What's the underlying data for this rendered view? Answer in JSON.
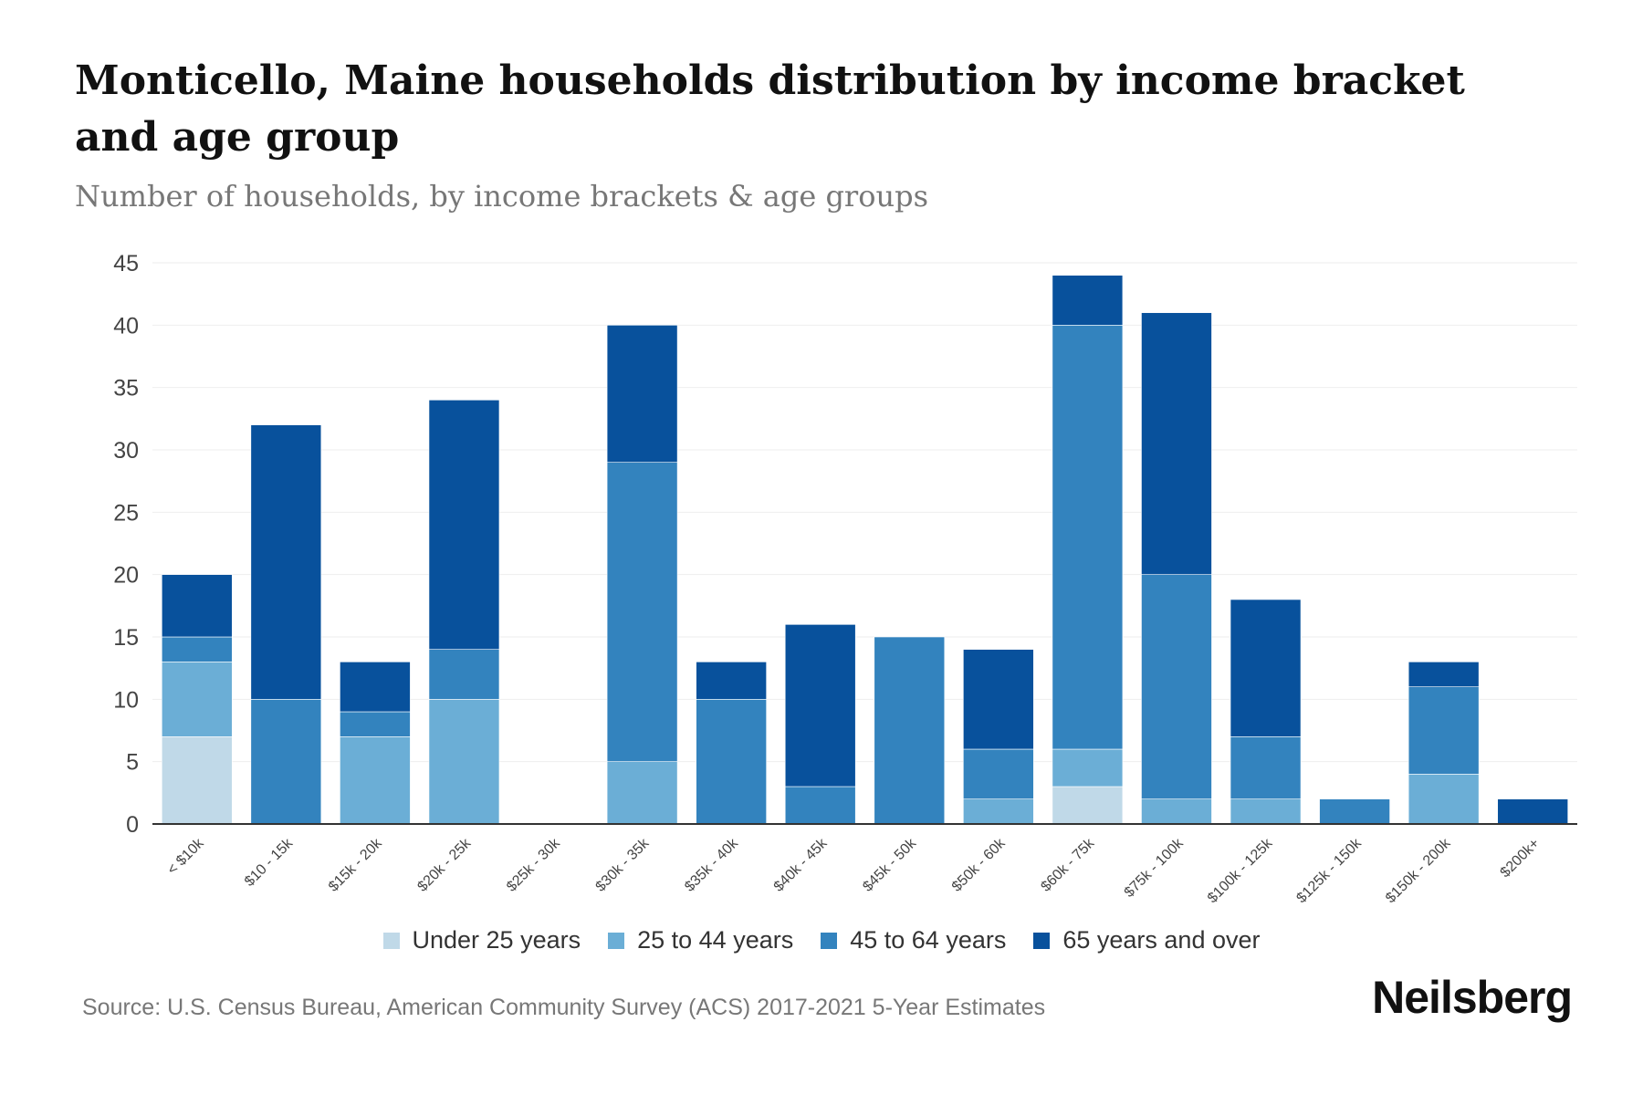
{
  "title": "Monticello, Maine households distribution by income bracket and age group",
  "subtitle": "Number of households, by income brackets & age groups",
  "source": "Source: U.S. Census Bureau, American Community Survey (ACS) 2017-2021 5-Year Estimates",
  "logo": "Neilsberg",
  "chart_data": {
    "type": "bar",
    "stacked": true,
    "title": "Monticello, Maine households distribution by income bracket and age group",
    "xlabel": "",
    "ylabel": "",
    "ylim": [
      0,
      45
    ],
    "yticks": [
      "0",
      "5",
      "10",
      "15",
      "20",
      "25",
      "30",
      "35",
      "40",
      "45"
    ],
    "grid": true,
    "legend_position": "bottom",
    "categories": [
      "< $10k",
      "$10 - 15k",
      "$15k - 20k",
      "$20k - 25k",
      "$25k - 30k",
      "$30k - 35k",
      "$35k - 40k",
      "$40k - 45k",
      "$45k - 50k",
      "$50k - 60k",
      "$60k - 75k",
      "$75k - 100k",
      "$100k - 125k",
      "$125k - 150k",
      "$150k - 200k",
      "$200k+"
    ],
    "series": [
      {
        "name": "Under 25 years",
        "color": "#c0d9e8",
        "values": [
          7,
          0,
          0,
          0,
          0,
          0,
          0,
          0,
          0,
          0,
          3,
          0,
          0,
          0,
          0,
          0
        ]
      },
      {
        "name": "25 to 44 years",
        "color": "#6baed6",
        "values": [
          6,
          0,
          7,
          10,
          0,
          5,
          0,
          0,
          0,
          2,
          3,
          2,
          2,
          0,
          4,
          0
        ]
      },
      {
        "name": "45 to 64 years",
        "color": "#3383be",
        "values": [
          2,
          10,
          2,
          4,
          0,
          24,
          10,
          3,
          15,
          4,
          34,
          18,
          5,
          2,
          7,
          0
        ]
      },
      {
        "name": "65 years and over",
        "color": "#08519c",
        "values": [
          5,
          22,
          4,
          20,
          0,
          11,
          3,
          13,
          0,
          8,
          4,
          21,
          11,
          0,
          2,
          2
        ]
      }
    ]
  }
}
